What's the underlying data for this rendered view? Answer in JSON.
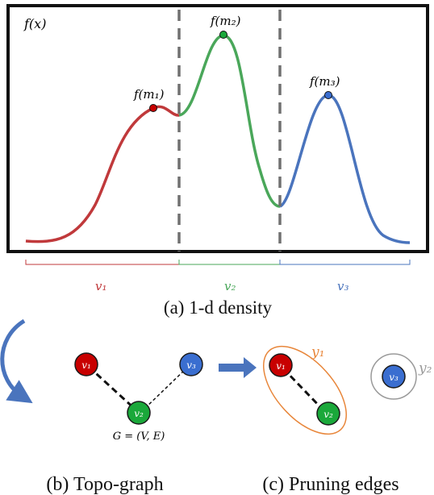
{
  "colors": {
    "red": "#c0393b",
    "green": "#4aa75a",
    "blue": "#4a74bd",
    "node_red": "#c80000",
    "node_green": "#1aa83a",
    "node_blue": "#3a6ed0",
    "orange": "#e8863a",
    "gray": "#9a9a9a",
    "frame": "#111111"
  },
  "panel_a": {
    "y_label": "f(x)",
    "peak_labels": [
      "f(m₁)",
      "f(m₂)",
      "f(m₃)"
    ],
    "segment_labels": [
      "v₁",
      "v₂",
      "v₃"
    ],
    "caption": "(a) 1-d density"
  },
  "panel_b": {
    "nodes": [
      "v₁",
      "v₃",
      "v₂"
    ],
    "graph_label": "G = (V, E)",
    "caption": "(b) Topo-graph"
  },
  "panel_c": {
    "nodes": [
      "v₁",
      "v₂",
      "v₃"
    ],
    "group_labels": [
      "y₁",
      "y₂"
    ],
    "caption": "(c) Pruning edges"
  }
}
